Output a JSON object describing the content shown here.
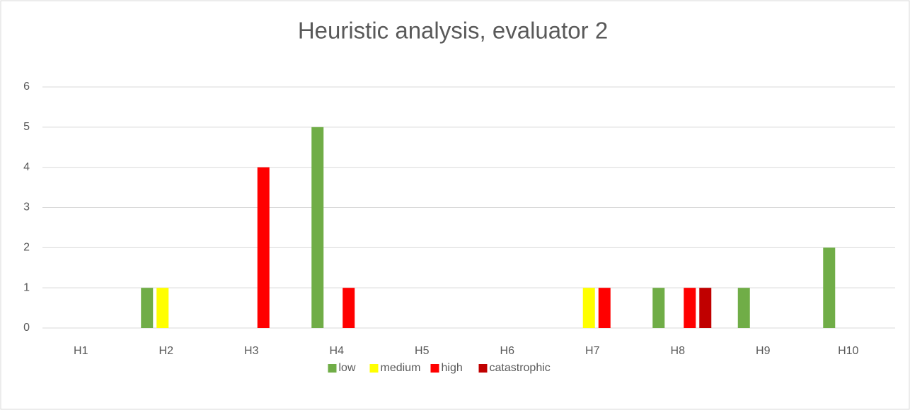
{
  "chart_data": {
    "type": "bar",
    "title": "Heuristic analysis, evaluator 2",
    "categories": [
      "H1",
      "H2",
      "H3",
      "H4",
      "H5",
      "H6",
      "H7",
      "H8",
      "H9",
      "H10"
    ],
    "series": [
      {
        "name": "low",
        "color": "#70ad47",
        "values": [
          0,
          1,
          0,
          5,
          0,
          0,
          0,
          1,
          1,
          2
        ]
      },
      {
        "name": "medium",
        "color": "#ffff00",
        "values": [
          0,
          1,
          0,
          0,
          0,
          0,
          1,
          0,
          0,
          0
        ]
      },
      {
        "name": "high",
        "color": "#ff0000",
        "values": [
          0,
          0,
          4,
          1,
          0,
          0,
          1,
          1,
          0,
          0
        ]
      },
      {
        "name": "catastrophic",
        "color": "#c00000",
        "values": [
          0,
          0,
          0,
          0,
          0,
          0,
          0,
          1,
          0,
          0
        ]
      }
    ],
    "ylim": [
      0,
      6
    ],
    "yticks": [
      0,
      1,
      2,
      3,
      4,
      5,
      6
    ],
    "grid": true,
    "legend": "bottom"
  }
}
